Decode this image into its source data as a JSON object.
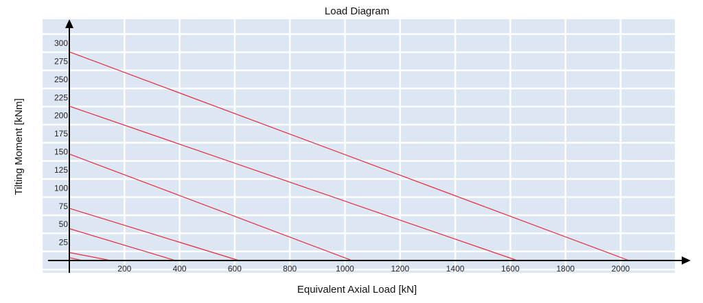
{
  "chart_data": {
    "type": "line",
    "title": "Load Diagram",
    "xlabel": "Equivalent Axial Load [kN]",
    "ylabel": "Tilting Moment [kNm]",
    "xlim": [
      0,
      2200
    ],
    "ylim": [
      0,
      310
    ],
    "x_ticks": [
      200,
      400,
      600,
      800,
      1000,
      1200,
      1400,
      1600,
      1800,
      2000
    ],
    "y_ticks": [
      25,
      50,
      75,
      100,
      125,
      150,
      175,
      200,
      225,
      250,
      275,
      300
    ],
    "grid": true,
    "legend": "none",
    "colors": {
      "plot_bg": "#dde7f4",
      "grid": "#ffffff",
      "series": "#e8283a",
      "axis": "#000000"
    },
    "series": [
      {
        "x": [
          0,
          2030
        ],
        "y": [
          288,
          0
        ]
      },
      {
        "x": [
          0,
          1625
        ],
        "y": [
          213,
          0
        ]
      },
      {
        "x": [
          0,
          1025
        ],
        "y": [
          147,
          0
        ]
      },
      {
        "x": [
          0,
          615
        ],
        "y": [
          72,
          0
        ]
      },
      {
        "x": [
          0,
          385
        ],
        "y": [
          44,
          0
        ]
      },
      {
        "x": [
          0,
          150
        ],
        "y": [
          11,
          0
        ]
      },
      {
        "x": [
          0,
          45
        ],
        "y": [
          4,
          0
        ]
      }
    ]
  }
}
